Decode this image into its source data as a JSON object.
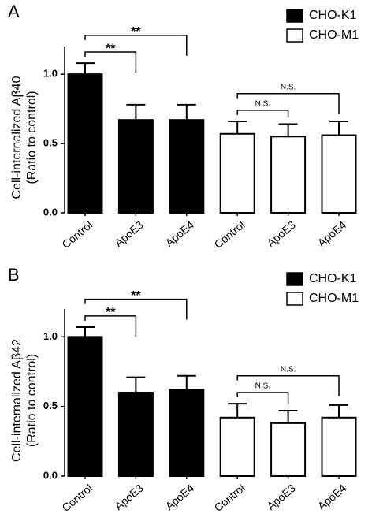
{
  "chart_data": [
    {
      "type": "bar",
      "panel_label": "A",
      "ylabel": [
        "Cell-internalized Aβ40",
        "(Ratio to control)"
      ],
      "categories": [
        "Control",
        "ApoE3",
        "ApoE4",
        "Control",
        "ApoE3",
        "ApoE4"
      ],
      "series": [
        {
          "name": "CHO-K1",
          "color": "#000000",
          "values": [
            1.0,
            0.67,
            0.67,
            null,
            null,
            null
          ],
          "errors": [
            0.08,
            0.11,
            0.11,
            null,
            null,
            null
          ]
        },
        {
          "name": "CHO-M1",
          "color": "#ffffff",
          "values": [
            null,
            null,
            null,
            0.57,
            0.55,
            0.56
          ],
          "errors": [
            null,
            null,
            null,
            0.09,
            0.09,
            0.1
          ]
        }
      ],
      "annotations": [
        {
          "label": "**",
          "between": [
            0,
            1
          ]
        },
        {
          "label": "**",
          "between": [
            0,
            2
          ]
        },
        {
          "label": "N.S.",
          "between": [
            3,
            4
          ]
        },
        {
          "label": "N.S.",
          "between": [
            3,
            5
          ]
        }
      ],
      "ylim": [
        0,
        1.2
      ],
      "yticks": [
        {
          "value": 0,
          "label": "0.0"
        },
        {
          "value": 0.5,
          "label": "0.5"
        },
        {
          "value": 1,
          "label": "1.0"
        }
      ]
    },
    {
      "type": "bar",
      "panel_label": "B",
      "ylabel": [
        "Cell-internalized Aβ42",
        "(Ratio to control)"
      ],
      "categories": [
        "Control",
        "ApoE3",
        "ApoE4",
        "Control",
        "ApoE3",
        "ApoE4"
      ],
      "series": [
        {
          "name": "CHO-K1",
          "color": "#000000",
          "values": [
            1.0,
            0.6,
            0.62,
            null,
            null,
            null
          ],
          "errors": [
            0.07,
            0.11,
            0.1,
            null,
            null,
            null
          ]
        },
        {
          "name": "CHO-M1",
          "color": "#ffffff",
          "values": [
            null,
            null,
            null,
            0.42,
            0.38,
            0.42
          ],
          "errors": [
            null,
            null,
            null,
            0.1,
            0.09,
            0.09
          ]
        }
      ],
      "annotations": [
        {
          "label": "**",
          "between": [
            0,
            1
          ]
        },
        {
          "label": "**",
          "between": [
            0,
            2
          ]
        },
        {
          "label": "N.S.",
          "between": [
            3,
            4
          ]
        },
        {
          "label": "N.S.",
          "between": [
            3,
            5
          ]
        }
      ],
      "ylim": [
        0,
        1.2
      ],
      "yticks": [
        {
          "value": 0,
          "label": "0.0"
        },
        {
          "value": 0.5,
          "label": "0.5"
        },
        {
          "value": 1,
          "label": "1.0"
        }
      ]
    }
  ]
}
